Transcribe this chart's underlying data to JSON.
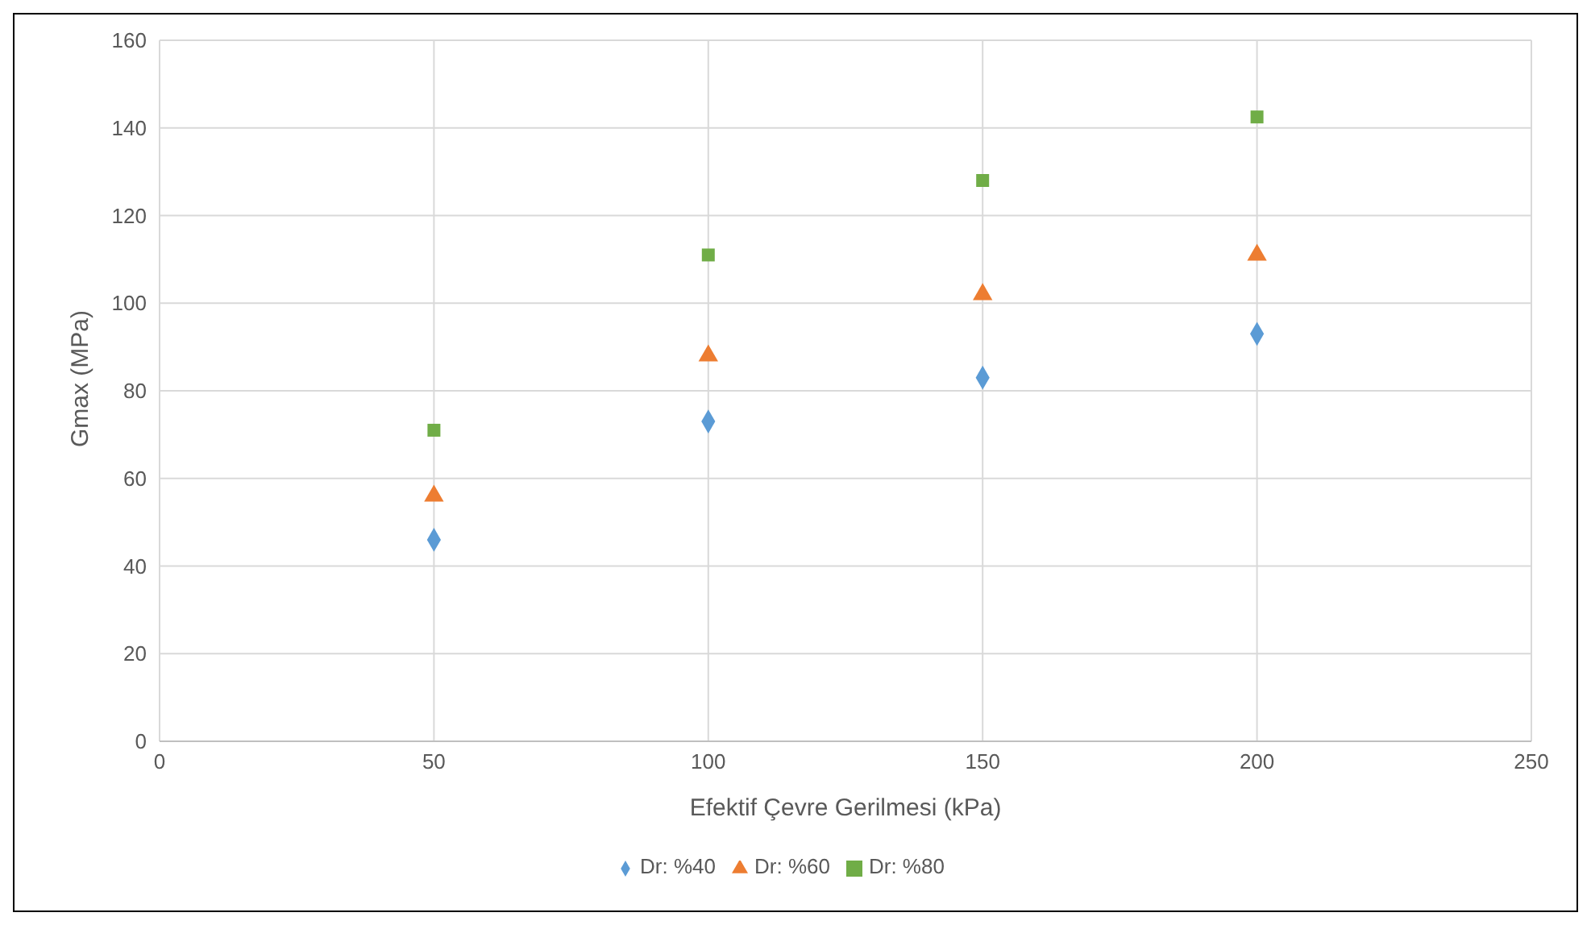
{
  "chart_data": {
    "type": "scatter",
    "xlabel": "Efektif Çevre Gerilmesi (kPa)",
    "ylabel": "Gmax (MPa)",
    "x": [
      50,
      100,
      150,
      200
    ],
    "series": [
      {
        "name": "Dr: %40",
        "color": "#5b9bd5",
        "marker": "diamond",
        "values": [
          46,
          73,
          83,
          93
        ]
      },
      {
        "name": "Dr: %60",
        "color": "#ed7d31",
        "marker": "triangle",
        "values": [
          56,
          88,
          102,
          111
        ]
      },
      {
        "name": "Dr: %80",
        "color": "#70ad47",
        "marker": "square",
        "values": [
          71,
          111,
          128,
          142.5
        ]
      }
    ],
    "xlim": [
      0,
      250
    ],
    "xticks": [
      0,
      50,
      100,
      150,
      200,
      250
    ],
    "ylim": [
      0,
      160
    ],
    "yticks": [
      0,
      20,
      40,
      60,
      80,
      100,
      120,
      140,
      160
    ],
    "grid": true,
    "legend": "bottom"
  }
}
